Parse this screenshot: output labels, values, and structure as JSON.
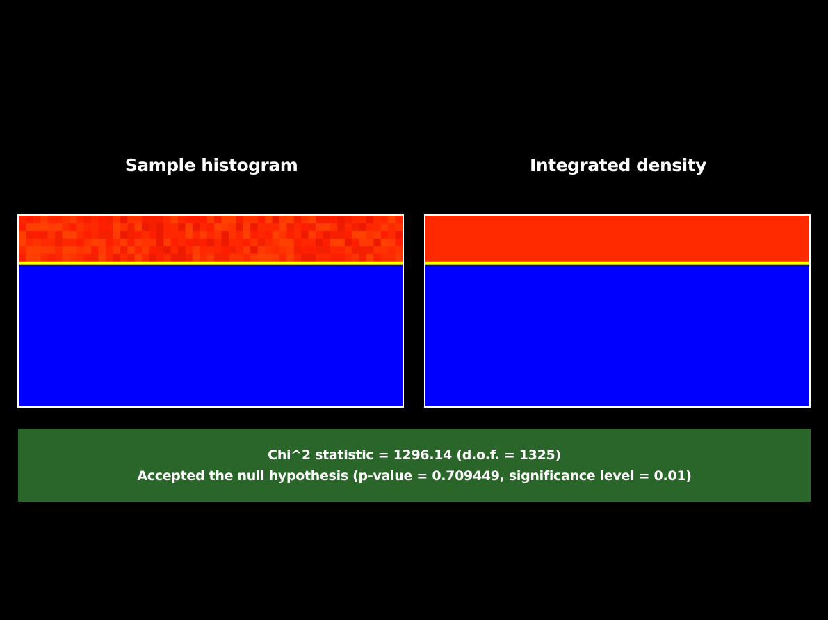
{
  "colors": {
    "background": "#000000",
    "plot_border": "#ffffff",
    "low_value": "#0000ff",
    "boundary": "#ffff00",
    "high_value": "#ff2a00",
    "result_box": "#2a652a"
  },
  "chart_data": [
    {
      "type": "heatmap",
      "title": "Sample histogram",
      "grid": false,
      "cells": {
        "columns": 53,
        "rows": 6
      },
      "regions": [
        {
          "name": "high",
          "fraction": 0.24,
          "color": "#ff2a00",
          "noise": true
        },
        {
          "name": "boundary",
          "fraction": 0.018,
          "color": "#ffff00"
        },
        {
          "name": "low",
          "fraction": 0.742,
          "color": "#0000ff"
        }
      ]
    },
    {
      "type": "heatmap",
      "title": "Integrated density",
      "grid": false,
      "regions": [
        {
          "name": "high",
          "fraction": 0.24,
          "color": "#ff2a00",
          "noise": false
        },
        {
          "name": "boundary",
          "fraction": 0.018,
          "color": "#ffff00"
        },
        {
          "name": "low",
          "fraction": 0.742,
          "color": "#0000ff"
        }
      ]
    }
  ],
  "result": {
    "line1": "Chi^2 statistic = 1296.14 (d.o.f. = 1325)",
    "line2": "Accepted the null hypothesis (p-value = 0.709449, significance level = 0.01)"
  }
}
